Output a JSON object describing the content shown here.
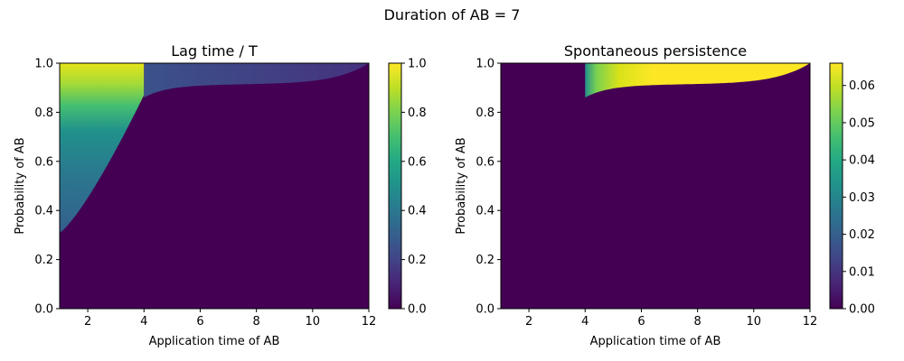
{
  "figure": {
    "suptitle": "Duration of AB = 7"
  },
  "chart_data": [
    {
      "type": "heatmap",
      "title": "Lag time / T",
      "xlabel": "Application time of AB",
      "ylabel": "Probability of AB",
      "xlim": [
        1,
        12
      ],
      "ylim": [
        0,
        1
      ],
      "xticks": [
        "2",
        "4",
        "6",
        "8",
        "10",
        "12"
      ],
      "yticks": [
        "0.0",
        "0.2",
        "0.4",
        "0.6",
        "0.8",
        "1.0"
      ],
      "colorbar": {
        "min": 0,
        "max": 1,
        "ticks": [
          "0.0",
          "0.2",
          "0.4",
          "0.6",
          "0.8",
          "1.0"
        ],
        "colormap": "viridis"
      },
      "grid": false,
      "regions": [
        {
          "name": "background",
          "value": 0.0
        },
        {
          "name": "left region (x 1-4, above boundary)",
          "value_range": [
            0.3,
            1.0
          ],
          "boundary_at_x1": 0.31,
          "boundary_at_x4": 0.87
        },
        {
          "name": "upper band (x 4-12)",
          "value_range": [
            0.15,
            0.3
          ],
          "lower_edge_at_x4": 0.86,
          "lower_edge_at_x12": 1.0
        }
      ]
    },
    {
      "type": "heatmap",
      "title": "Spontaneous persistence",
      "xlabel": "Application time of AB",
      "ylabel": "Probability of AB",
      "xlim": [
        1,
        12
      ],
      "ylim": [
        0,
        1
      ],
      "xticks": [
        "2",
        "4",
        "6",
        "8",
        "10",
        "12"
      ],
      "yticks": [
        "0.0",
        "0.2",
        "0.4",
        "0.6",
        "0.8",
        "1.0"
      ],
      "colorbar": {
        "min": 0,
        "max": 0.066,
        "ticks": [
          "0.00",
          "0.01",
          "0.02",
          "0.03",
          "0.04",
          "0.05",
          "0.06"
        ],
        "colormap": "viridis"
      },
      "grid": false,
      "regions": [
        {
          "name": "background",
          "value": 0.0
        },
        {
          "name": "upper band (x 4-12)",
          "value_range": [
            0.02,
            0.066
          ],
          "lower_edge_at_x4": 0.86,
          "lower_edge_at_x12": 1.0
        }
      ]
    }
  ]
}
